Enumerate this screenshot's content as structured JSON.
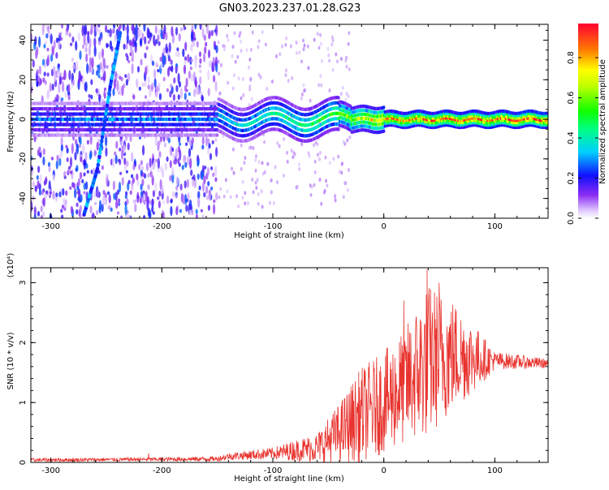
{
  "title": "GN03.2023.237.01.28.G23",
  "chart_data": [
    {
      "type": "heatmap",
      "panel": "spectrogram",
      "xlabel": "Height of straight line (km)",
      "ylabel": "Frequency (Hz)",
      "xlim": [
        -318,
        148
      ],
      "ylim": [
        -50,
        48
      ],
      "xticks": [
        -300,
        -200,
        -100,
        0,
        100
      ],
      "yticks": [
        -40,
        -20,
        0,
        20,
        40
      ],
      "colorbar": {
        "label": "Normalized spectral amplitude",
        "range": [
          0.0,
          0.97
        ],
        "ticks": [
          0.0,
          0.2,
          0.4,
          0.6,
          0.8
        ],
        "colormap": "rainbow-white-violet-blue-cyan-green-yellow-red"
      },
      "features": {
        "noisy_region_x": [
          -318,
          -150
        ],
        "central_band_amplitude_by_x": [
          {
            "x": -150,
            "amp": 0.35
          },
          {
            "x": -100,
            "amp": 0.45
          },
          {
            "x": -50,
            "amp": 0.55
          },
          {
            "x": 0,
            "amp": 0.85
          },
          {
            "x": 50,
            "amp": 0.9
          },
          {
            "x": 148,
            "amp": 0.95
          }
        ],
        "slanted_trace": [
          {
            "x": -270,
            "y": -48
          },
          {
            "x": -258,
            "y": -25
          },
          {
            "x": -247,
            "y": 15
          },
          {
            "x": -237,
            "y": 45
          }
        ]
      }
    },
    {
      "type": "line",
      "panel": "snr",
      "xlabel": "Height of straight line (km)",
      "ylabel": "SNR (10 * v/v)",
      "y_multiplier": "(x10⁴)",
      "xlim": [
        -318,
        148
      ],
      "ylim": [
        0,
        3.25
      ],
      "xticks": [
        -300,
        -200,
        -100,
        0,
        100
      ],
      "yticks": [
        0,
        1,
        2,
        3
      ],
      "series": [
        {
          "color": "#e8332e",
          "envelope": [
            {
              "x": -318,
              "mean": 0.04,
              "amp": 0.03
            },
            {
              "x": -220,
              "mean": 0.05,
              "amp": 0.03
            },
            {
              "x": -150,
              "mean": 0.06,
              "amp": 0.04
            },
            {
              "x": -140,
              "mean": 0.1,
              "amp": 0.06
            },
            {
              "x": -100,
              "mean": 0.15,
              "amp": 0.1
            },
            {
              "x": -60,
              "mean": 0.25,
              "amp": 0.25
            },
            {
              "x": -40,
              "mean": 0.5,
              "amp": 0.5
            },
            {
              "x": -20,
              "mean": 0.8,
              "amp": 0.8
            },
            {
              "x": 0,
              "mean": 1.0,
              "amp": 0.85
            },
            {
              "x": 20,
              "mean": 1.3,
              "amp": 1.0
            },
            {
              "x": 40,
              "mean": 1.7,
              "amp": 1.3
            },
            {
              "x": 60,
              "mean": 1.8,
              "amp": 1.0
            },
            {
              "x": 80,
              "mean": 1.75,
              "amp": 0.6
            },
            {
              "x": 100,
              "mean": 1.7,
              "amp": 0.15
            },
            {
              "x": 148,
              "mean": 1.65,
              "amp": 0.08
            }
          ],
          "peaks": [
            {
              "x": 39,
              "y": 3.22
            },
            {
              "x": 18,
              "y": 2.7
            },
            {
              "x": 50,
              "y": 3.0
            },
            {
              "x": -212,
              "y": 0.15
            }
          ]
        }
      ]
    }
  ]
}
